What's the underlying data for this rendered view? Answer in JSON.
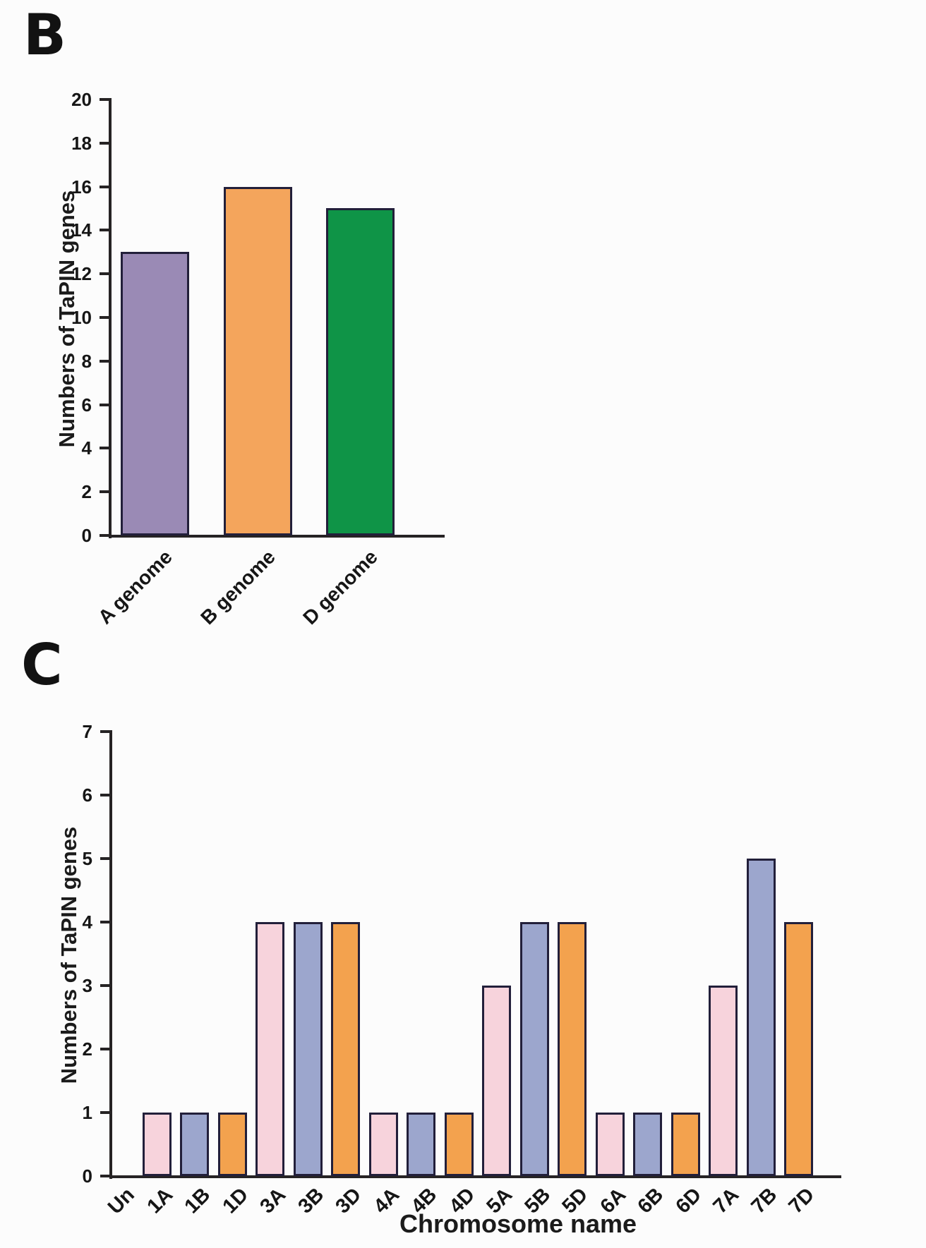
{
  "figure": {
    "background_color": "#fcfcfc",
    "axis_color": "#262324",
    "bar_border_color": "#221f3a"
  },
  "chart_data": [
    {
      "type": "bar",
      "panel_label": "B",
      "title": "",
      "categories": [
        "A genome",
        "B genome",
        "D genome"
      ],
      "values": [
        13,
        16,
        15
      ],
      "bar_colors": [
        "#9a8ab5",
        "#f4a55c",
        "#0f9447"
      ],
      "xlabel": "",
      "ylabel": "Numbers of TaPIN genes",
      "ylim": [
        0,
        20
      ],
      "ytick_step": 2,
      "grid": false,
      "legend": "none"
    },
    {
      "type": "bar",
      "panel_label": "C",
      "title": "",
      "categories": [
        "Un",
        "1A",
        "1B",
        "1D",
        "3A",
        "3B",
        "3D",
        "4A",
        "4B",
        "4D",
        "5A",
        "5B",
        "5D",
        "6A",
        "6B",
        "6D",
        "7A",
        "7B",
        "7D"
      ],
      "values": [
        0,
        1,
        1,
        1,
        4,
        4,
        4,
        1,
        1,
        1,
        3,
        4,
        4,
        1,
        1,
        1,
        3,
        5,
        4
      ],
      "bar_colors": [
        "",
        "#f7d3dc",
        "#9ca6cd",
        "#f3a24e",
        "#f7d3dc",
        "#9ca6cd",
        "#f3a24e",
        "#f7d3dc",
        "#9ca6cd",
        "#f3a24e",
        "#f7d3dc",
        "#9ca6cd",
        "#f3a24e",
        "#f7d3dc",
        "#9ca6cd",
        "#f3a24e",
        "#f7d3dc",
        "#9ca6cd",
        "#f3a24e"
      ],
      "xlabel": "Chromosome name",
      "ylabel": "Numbers of TaPIN genes",
      "ylim": [
        0,
        7
      ],
      "ytick_step": 1,
      "grid": false,
      "legend": "none"
    }
  ]
}
